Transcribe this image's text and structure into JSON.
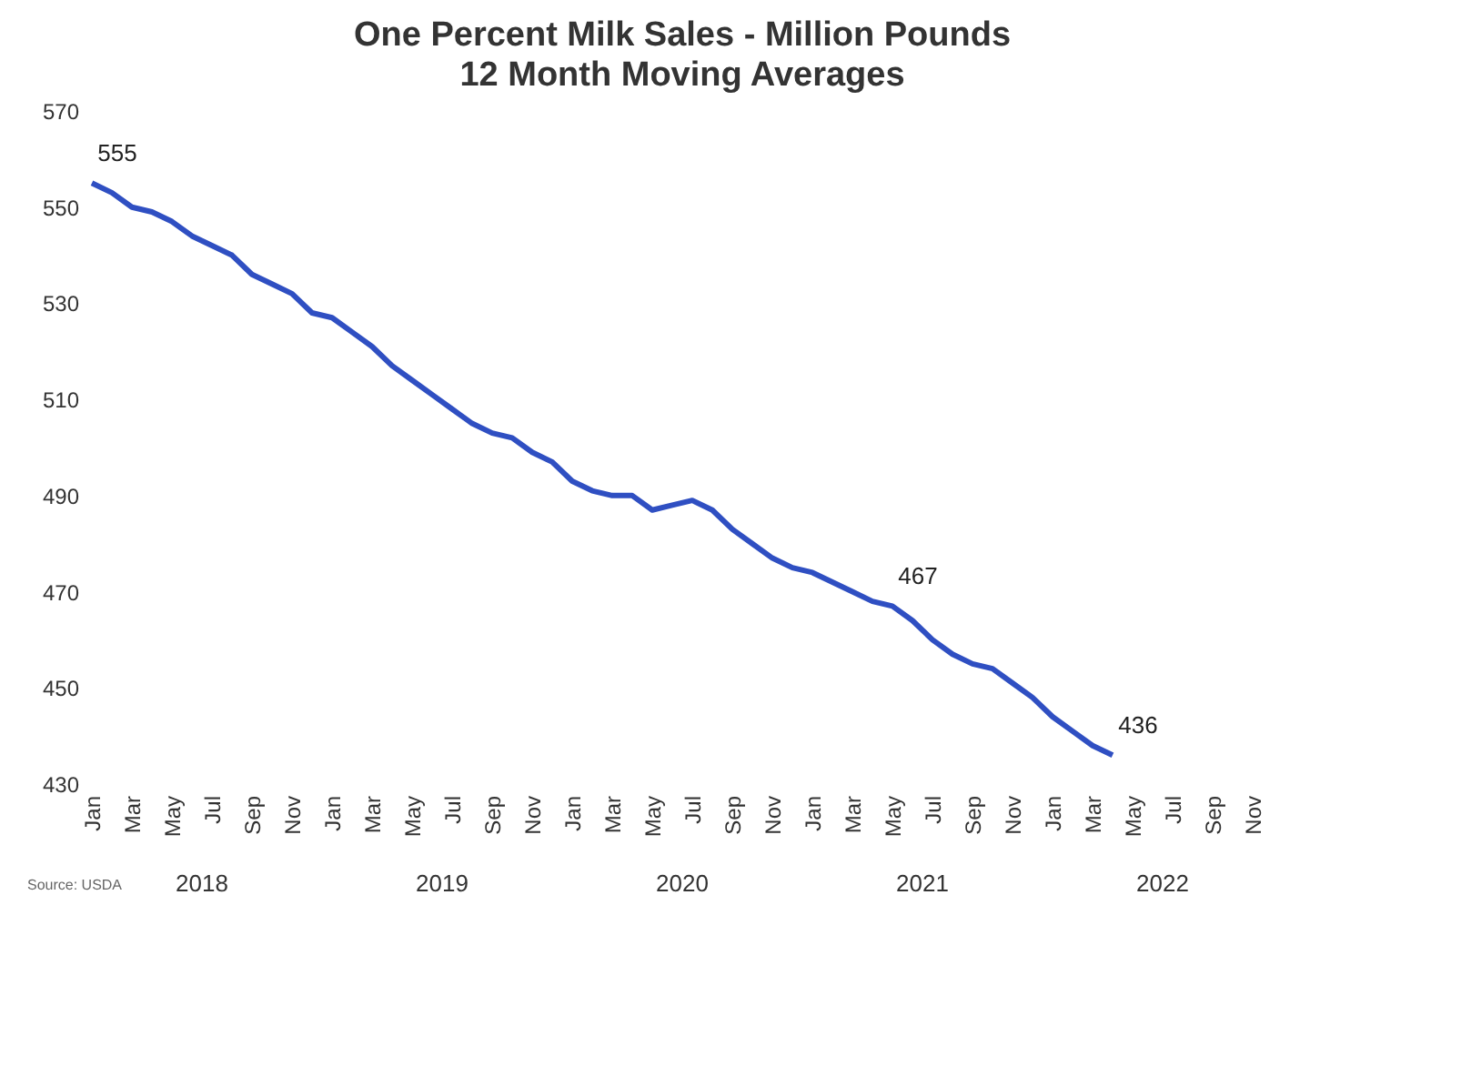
{
  "chart_data": {
    "type": "line",
    "title": "One Percent Milk Sales - Million Pounds",
    "subtitle": "12 Month Moving Averages",
    "categories": [
      "Jan",
      null,
      "Mar",
      null,
      "May",
      null,
      "Jul",
      null,
      "Sep",
      null,
      "Nov",
      null,
      "Jan",
      null,
      "Mar",
      null,
      "May",
      null,
      "Jul",
      null,
      "Sep",
      null,
      "Nov",
      null,
      "Jan",
      null,
      "Mar",
      null,
      "May",
      null,
      "Jul",
      null,
      "Sep",
      null,
      "Nov",
      null,
      "Jan",
      null,
      "Mar",
      null,
      "May",
      null,
      "Jul",
      null,
      "Sep",
      null,
      "Nov",
      null,
      "Jan",
      null,
      "Mar",
      null,
      "May",
      null,
      "Jul",
      null,
      "Sep",
      null,
      "Nov",
      null
    ],
    "series": [
      {
        "color": "#2f4fc2",
        "values": [
          555,
          553,
          550,
          549,
          547,
          544,
          542,
          540,
          536,
          534,
          532,
          528,
          527,
          524,
          521,
          517,
          514,
          511,
          508,
          505,
          503,
          502,
          499,
          497,
          493,
          491,
          490,
          490,
          487,
          488,
          489,
          487,
          483,
          480,
          477,
          475,
          474,
          472,
          470,
          468,
          467,
          464,
          460,
          457,
          455,
          454,
          451,
          448,
          444,
          441,
          438,
          436,
          null,
          null,
          null,
          null,
          null,
          null,
          null,
          null
        ],
        "value_labels": [
          "555",
          null,
          null,
          null,
          null,
          null,
          null,
          null,
          null,
          null,
          null,
          null,
          null,
          null,
          null,
          null,
          null,
          null,
          null,
          null,
          null,
          null,
          null,
          null,
          null,
          null,
          null,
          null,
          null,
          null,
          null,
          null,
          null,
          null,
          null,
          null,
          null,
          null,
          null,
          null,
          "467",
          null,
          null,
          null,
          null,
          null,
          null,
          null,
          null,
          null,
          null,
          "436",
          null,
          null,
          null,
          null,
          null,
          null,
          null,
          null
        ]
      }
    ],
    "ylim": [
      430,
      570
    ],
    "yticks": [
      430,
      450,
      470,
      490,
      510,
      530,
      550,
      570
    ],
    "grid": false,
    "marker": "none",
    "line_style": "solid",
    "annotations": [
      "2018",
      "2019",
      "2020",
      "2021",
      "2022",
      "Source: USDA"
    ]
  }
}
